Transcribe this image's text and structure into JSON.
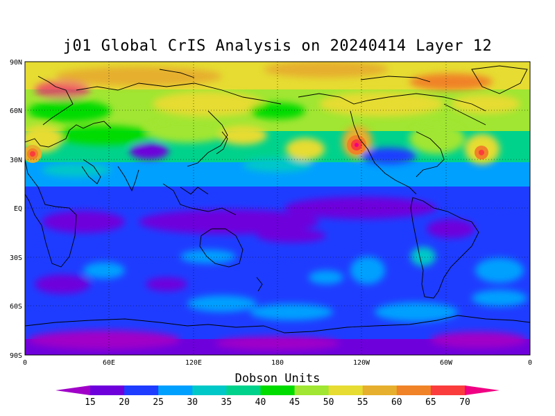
{
  "title": "j01 Global CrIS Analysis on 20240414 Layer 12",
  "map": {
    "projection": "equirectangular",
    "lon_range": [
      0,
      360
    ],
    "lat_range": [
      -90,
      90
    ],
    "coastlines": true,
    "grid": "dotted",
    "lat_ticks": [
      "90N",
      "60N",
      "30N",
      "EQ",
      "30S",
      "60S",
      "90S"
    ],
    "lon_ticks": [
      "0",
      "60E",
      "120E",
      "180",
      "120W",
      "60W",
      "0"
    ]
  },
  "colorbar": {
    "title": "Dobson Units",
    "labels": [
      "15",
      "20",
      "25",
      "30",
      "35",
      "40",
      "45",
      "50",
      "55",
      "60",
      "65",
      "70"
    ],
    "colors": [
      "#a000c8",
      "#6e00dc",
      "#1e3cff",
      "#00a0ff",
      "#00c8c8",
      "#00d28c",
      "#00dc00",
      "#a0e632",
      "#e6dc32",
      "#e6af2d",
      "#f08228",
      "#fa3c3c",
      "#f00082"
    ]
  }
}
